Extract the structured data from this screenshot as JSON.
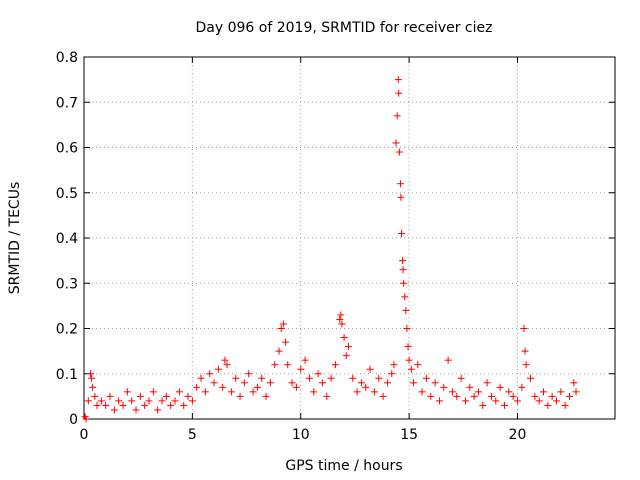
{
  "chart_data": {
    "type": "scatter",
    "title": "Day 096 of 2019, SRMTID for receiver ciez",
    "xlabel": "GPS time / hours",
    "ylabel": "SRMTID / TECUs",
    "xlim": [
      0,
      24.5
    ],
    "ylim": [
      0,
      0.8
    ],
    "x_ticks": [
      0,
      5,
      10,
      15,
      20
    ],
    "x_tick_labels": [
      "0",
      "5",
      "10",
      "15",
      "20"
    ],
    "y_ticks": [
      0,
      0.1,
      0.2,
      0.3,
      0.4,
      0.5,
      0.6,
      0.7,
      0.8
    ],
    "y_tick_labels": [
      "0",
      "0.1",
      "0.2",
      "0.3",
      "0.4",
      "0.5",
      "0.6",
      "0.7",
      "0.8"
    ],
    "grid": true,
    "marker": "+",
    "marker_color": "#ff0000",
    "series": [
      {
        "name": "SRMTID",
        "points": [
          [
            0.05,
            0.005
          ],
          [
            0.1,
            0.0
          ],
          [
            0.2,
            0.04
          ],
          [
            0.3,
            0.1
          ],
          [
            0.35,
            0.09
          ],
          [
            0.4,
            0.07
          ],
          [
            0.5,
            0.05
          ],
          [
            0.6,
            0.03
          ],
          [
            0.8,
            0.04
          ],
          [
            1.0,
            0.03
          ],
          [
            1.2,
            0.05
          ],
          [
            1.4,
            0.02
          ],
          [
            1.6,
            0.04
          ],
          [
            1.8,
            0.03
          ],
          [
            2.0,
            0.06
          ],
          [
            2.2,
            0.04
          ],
          [
            2.4,
            0.02
          ],
          [
            2.6,
            0.05
          ],
          [
            2.8,
            0.03
          ],
          [
            3.0,
            0.04
          ],
          [
            3.2,
            0.06
          ],
          [
            3.4,
            0.02
          ],
          [
            3.6,
            0.04
          ],
          [
            3.8,
            0.05
          ],
          [
            4.0,
            0.03
          ],
          [
            4.2,
            0.04
          ],
          [
            4.4,
            0.06
          ],
          [
            4.6,
            0.03
          ],
          [
            4.8,
            0.05
          ],
          [
            5.0,
            0.04
          ],
          [
            5.2,
            0.07
          ],
          [
            5.4,
            0.09
          ],
          [
            5.6,
            0.06
          ],
          [
            5.8,
            0.1
          ],
          [
            6.0,
            0.08
          ],
          [
            6.2,
            0.11
          ],
          [
            6.4,
            0.07
          ],
          [
            6.5,
            0.13
          ],
          [
            6.6,
            0.12
          ],
          [
            6.8,
            0.06
          ],
          [
            7.0,
            0.09
          ],
          [
            7.2,
            0.05
          ],
          [
            7.4,
            0.08
          ],
          [
            7.6,
            0.1
          ],
          [
            7.8,
            0.06
          ],
          [
            8.0,
            0.07
          ],
          [
            8.2,
            0.09
          ],
          [
            8.4,
            0.05
          ],
          [
            8.6,
            0.08
          ],
          [
            8.8,
            0.12
          ],
          [
            9.0,
            0.15
          ],
          [
            9.1,
            0.2
          ],
          [
            9.2,
            0.21
          ],
          [
            9.3,
            0.17
          ],
          [
            9.4,
            0.12
          ],
          [
            9.6,
            0.08
          ],
          [
            9.8,
            0.07
          ],
          [
            10.0,
            0.11
          ],
          [
            10.2,
            0.13
          ],
          [
            10.4,
            0.09
          ],
          [
            10.6,
            0.06
          ],
          [
            10.8,
            0.1
          ],
          [
            11.0,
            0.08
          ],
          [
            11.2,
            0.05
          ],
          [
            11.4,
            0.09
          ],
          [
            11.6,
            0.12
          ],
          [
            11.8,
            0.22
          ],
          [
            11.85,
            0.23
          ],
          [
            11.9,
            0.21
          ],
          [
            12.0,
            0.18
          ],
          [
            12.1,
            0.14
          ],
          [
            12.2,
            0.16
          ],
          [
            12.4,
            0.09
          ],
          [
            12.6,
            0.06
          ],
          [
            12.8,
            0.08
          ],
          [
            13.0,
            0.07
          ],
          [
            13.2,
            0.11
          ],
          [
            13.4,
            0.06
          ],
          [
            13.6,
            0.09
          ],
          [
            13.8,
            0.05
          ],
          [
            14.0,
            0.08
          ],
          [
            14.2,
            0.1
          ],
          [
            14.3,
            0.12
          ],
          [
            14.4,
            0.61
          ],
          [
            14.45,
            0.67
          ],
          [
            14.5,
            0.75
          ],
          [
            14.52,
            0.72
          ],
          [
            14.55,
            0.59
          ],
          [
            14.6,
            0.52
          ],
          [
            14.62,
            0.49
          ],
          [
            14.65,
            0.41
          ],
          [
            14.7,
            0.35
          ],
          [
            14.72,
            0.33
          ],
          [
            14.75,
            0.3
          ],
          [
            14.8,
            0.27
          ],
          [
            14.85,
            0.24
          ],
          [
            14.9,
            0.2
          ],
          [
            14.95,
            0.16
          ],
          [
            15.0,
            0.13
          ],
          [
            15.1,
            0.11
          ],
          [
            15.2,
            0.08
          ],
          [
            15.4,
            0.12
          ],
          [
            15.6,
            0.06
          ],
          [
            15.8,
            0.09
          ],
          [
            16.0,
            0.05
          ],
          [
            16.2,
            0.08
          ],
          [
            16.4,
            0.04
          ],
          [
            16.6,
            0.07
          ],
          [
            16.8,
            0.13
          ],
          [
            17.0,
            0.06
          ],
          [
            17.2,
            0.05
          ],
          [
            17.4,
            0.09
          ],
          [
            17.6,
            0.04
          ],
          [
            17.8,
            0.07
          ],
          [
            18.0,
            0.05
          ],
          [
            18.2,
            0.06
          ],
          [
            18.4,
            0.03
          ],
          [
            18.6,
            0.08
          ],
          [
            18.8,
            0.05
          ],
          [
            19.0,
            0.04
          ],
          [
            19.2,
            0.07
          ],
          [
            19.4,
            0.03
          ],
          [
            19.6,
            0.06
          ],
          [
            19.8,
            0.05
          ],
          [
            20.0,
            0.04
          ],
          [
            20.2,
            0.07
          ],
          [
            20.3,
            0.2
          ],
          [
            20.35,
            0.15
          ],
          [
            20.4,
            0.12
          ],
          [
            20.6,
            0.09
          ],
          [
            20.8,
            0.05
          ],
          [
            21.0,
            0.04
          ],
          [
            21.2,
            0.06
          ],
          [
            21.4,
            0.03
          ],
          [
            21.6,
            0.05
          ],
          [
            21.8,
            0.04
          ],
          [
            22.0,
            0.06
          ],
          [
            22.2,
            0.03
          ],
          [
            22.4,
            0.05
          ],
          [
            22.6,
            0.08
          ],
          [
            22.7,
            0.06
          ]
        ]
      }
    ]
  }
}
